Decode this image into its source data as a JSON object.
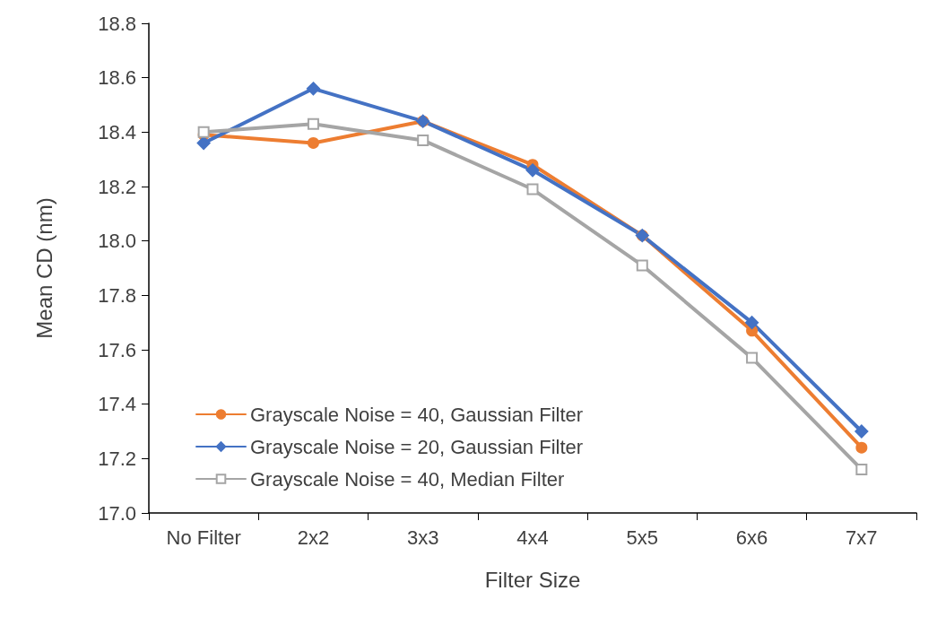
{
  "chart_data": {
    "type": "line",
    "xlabel": "Filter Size",
    "ylabel": "Mean CD (nm)",
    "categories": [
      "No Filter",
      "2x2",
      "3x3",
      "4x4",
      "5x5",
      "6x6",
      "7x7"
    ],
    "series": [
      {
        "name": "Grayscale Noise = 40, Gaussian Filter",
        "color": "#ed7d31",
        "marker": "circle",
        "values": [
          18.39,
          18.36,
          18.44,
          18.28,
          18.02,
          17.67,
          17.24
        ]
      },
      {
        "name": "Grayscale Noise = 20, Gaussian Filter",
        "color": "#4472c4",
        "marker": "diamond",
        "values": [
          18.36,
          18.56,
          18.44,
          18.26,
          18.02,
          17.7,
          17.3
        ]
      },
      {
        "name": "Grayscale Noise = 40, Median Filter",
        "color": "#a5a5a5",
        "marker": "square",
        "values": [
          18.4,
          18.43,
          18.37,
          18.19,
          17.91,
          17.57,
          17.16
        ]
      }
    ],
    "ylim": [
      17.0,
      18.8
    ],
    "yticks": [
      {
        "value": 17,
        "label": "17.0"
      },
      17.2,
      17.4,
      17.6,
      17.8,
      {
        "value": 18,
        "label": "18.0"
      },
      18.2,
      18.4,
      18.6,
      18.8
    ],
    "grid": false,
    "legend": "bottom left",
    "line_style": "solid"
  }
}
